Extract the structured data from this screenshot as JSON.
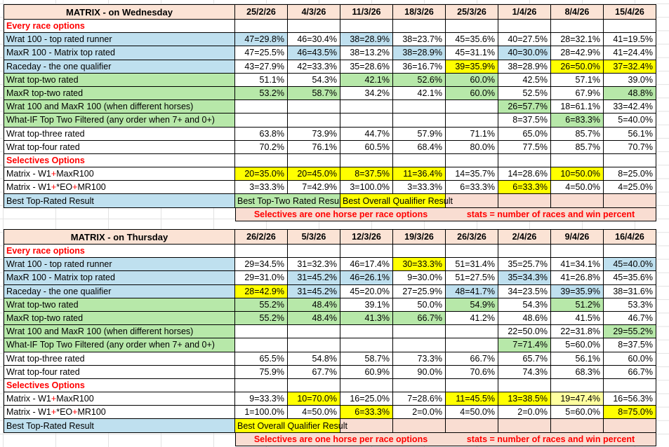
{
  "colors": {
    "peach": "#FBE3D5",
    "pink": "#F9DDD2",
    "blue": "#BFE0EF",
    "green": "#B7E8A9",
    "yellow": "#FFFF00",
    "pale": "#FFFF9F",
    "red": "#FF0000",
    "border": "#000000",
    "gridline": "#E2E2E2"
  },
  "banner": {
    "selectives": "Selectives are one horse per race options",
    "stats": "stats = number of races and win percent"
  },
  "tables": [
    {
      "title": "MATRIX - on Wednesday",
      "dates": [
        "25/2/26",
        "4/3/26",
        "11/3/26",
        "18/3/26",
        "25/3/26",
        "1/4/26",
        "8/4/26",
        "15/4/26"
      ],
      "rows": [
        {
          "type": "section",
          "label": "Every race options"
        },
        {
          "type": "data",
          "label": "Wrat 100 - top rated runner",
          "label_bg": "b",
          "cells": [
            {
              "v": "47=29.8%",
              "bg": "b"
            },
            {
              "v": "46=30.4%"
            },
            {
              "v": "38=28.9%",
              "bg": "b"
            },
            {
              "v": "38=23.7%"
            },
            {
              "v": "45=35.6%"
            },
            {
              "v": "40=27.5%"
            },
            {
              "v": "28=32.1%"
            },
            {
              "v": "41=19.5%"
            }
          ]
        },
        {
          "type": "data",
          "label": "MaxR 100 - Matrix top rated",
          "label_bg": "b",
          "cells": [
            {
              "v": "47=25.5%"
            },
            {
              "v": "46=43.5%",
              "bg": "b"
            },
            {
              "v": "38=13.2%"
            },
            {
              "v": "38=28.9%",
              "bg": "b"
            },
            {
              "v": "45=31.1%"
            },
            {
              "v": "40=30.0%",
              "bg": "b"
            },
            {
              "v": "28=42.9%"
            },
            {
              "v": "41=24.4%"
            }
          ]
        },
        {
          "type": "data",
          "label": "Raceday - the one qualifier",
          "label_bg": "b",
          "cells": [
            {
              "v": "43=27.9%"
            },
            {
              "v": "42=33.3%"
            },
            {
              "v": "35=28.6%"
            },
            {
              "v": "36=16.7%"
            },
            {
              "v": "39=35.9%",
              "bg": "y"
            },
            {
              "v": "38=28.9%"
            },
            {
              "v": "26=50.0%",
              "bg": "y"
            },
            {
              "v": "37=32.4%",
              "bg": "y"
            }
          ]
        },
        {
          "type": "data",
          "label": "Wrat top-two rated",
          "label_bg": "g",
          "cells": [
            {
              "v": "51.1%"
            },
            {
              "v": "54.3%"
            },
            {
              "v": "42.1%",
              "bg": "g"
            },
            {
              "v": "52.6%",
              "bg": "g"
            },
            {
              "v": "60.0%",
              "bg": "g"
            },
            {
              "v": "42.5%"
            },
            {
              "v": "57.1%"
            },
            {
              "v": "39.0%"
            }
          ]
        },
        {
          "type": "data",
          "label": "MaxR top-two rated",
          "label_bg": "g",
          "cells": [
            {
              "v": "53.2%",
              "bg": "g"
            },
            {
              "v": "58.7%",
              "bg": "g"
            },
            {
              "v": "34.2%"
            },
            {
              "v": "42.1%"
            },
            {
              "v": "60.0%",
              "bg": "g"
            },
            {
              "v": "52.5%"
            },
            {
              "v": "67.9%"
            },
            {
              "v": "48.8%",
              "bg": "g"
            }
          ]
        },
        {
          "type": "data",
          "label": "Wrat 100 and MaxR 100 (when different horses)",
          "label_bg": "g",
          "cells": [
            {
              "v": ""
            },
            {
              "v": ""
            },
            {
              "v": ""
            },
            {
              "v": ""
            },
            {
              "v": ""
            },
            {
              "v": "26=57.7%",
              "bg": "g"
            },
            {
              "v": "18=61.1%"
            },
            {
              "v": "33=42.4%"
            }
          ]
        },
        {
          "type": "data",
          "label": "What-IF Top Two Filtered (any order when 7+ and 0+)",
          "label_bg": "g",
          "cells": [
            {
              "v": ""
            },
            {
              "v": ""
            },
            {
              "v": ""
            },
            {
              "v": ""
            },
            {
              "v": ""
            },
            {
              "v": "8=37.5%"
            },
            {
              "v": "6=83.3%",
              "bg": "g"
            },
            {
              "v": "5=40.0%"
            }
          ]
        },
        {
          "type": "data",
          "label": "Wrat top-three rated",
          "cells": [
            {
              "v": "63.8%"
            },
            {
              "v": "73.9%"
            },
            {
              "v": "44.7%"
            },
            {
              "v": "57.9%"
            },
            {
              "v": "71.1%"
            },
            {
              "v": "65.0%"
            },
            {
              "v": "85.7%"
            },
            {
              "v": "56.1%"
            }
          ]
        },
        {
          "type": "data",
          "label": "Wrat top-four rated",
          "cells": [
            {
              "v": "70.2%"
            },
            {
              "v": "76.1%"
            },
            {
              "v": "60.5%"
            },
            {
              "v": "68.4%"
            },
            {
              "v": "80.0%"
            },
            {
              "v": "77.5%"
            },
            {
              "v": "85.7%"
            },
            {
              "v": "70.7%"
            }
          ]
        },
        {
          "type": "section",
          "label": "Selectives Options"
        },
        {
          "type": "data",
          "label_parts": [
            [
              "Matrix - W1",
              "k"
            ],
            [
              "+",
              "r"
            ],
            [
              "MaxR100",
              "k"
            ]
          ],
          "cells": [
            {
              "v": "20=35.0%",
              "bg": "y"
            },
            {
              "v": "20=45.0%",
              "bg": "y"
            },
            {
              "v": "8=37.5%",
              "bg": "y"
            },
            {
              "v": "11=36.4%",
              "bg": "y"
            },
            {
              "v": "14=35.7%"
            },
            {
              "v": "14=28.6%"
            },
            {
              "v": "10=50.0%",
              "bg": "y"
            },
            {
              "v": "8=25.0%"
            }
          ]
        },
        {
          "type": "data",
          "label_parts": [
            [
              "Matrix - W1",
              "k"
            ],
            [
              "+",
              "r"
            ],
            [
              "*EO",
              "k"
            ],
            [
              "+",
              "r"
            ],
            [
              "MR100",
              "k"
            ]
          ],
          "cells": [
            {
              "v": "3=33.3%"
            },
            {
              "v": "7=42.9%"
            },
            {
              "v": "3=100.0%"
            },
            {
              "v": "3=33.3%"
            },
            {
              "v": "6=33.3%"
            },
            {
              "v": "6=33.3%",
              "bg": "y"
            },
            {
              "v": "4=50.0%"
            },
            {
              "v": "4=25.0%"
            }
          ]
        },
        {
          "type": "best",
          "label": "Best Top-Rated Result",
          "segments": [
            {
              "text": "Best Top-Two Rated Result",
              "bg": "g",
              "span": 2,
              "clip": true
            },
            {
              "text": "Best Overall Qualifier Result",
              "bg": "y",
              "span": 2,
              "overflow": true
            },
            {
              "bg": "pink"
            },
            {
              "bg": "pink"
            },
            {
              "bg": "pink"
            },
            {
              "bg": "pink"
            }
          ]
        },
        {
          "type": "banner"
        }
      ]
    },
    {
      "title": "MATRIX - on Thursday",
      "dates": [
        "26/2/26",
        "5/3/26",
        "12/3/26",
        "19/3/26",
        "26/3/26",
        "2/4/26",
        "9/4/26",
        "16/4/26"
      ],
      "rows": [
        {
          "type": "section",
          "label": "Every race options"
        },
        {
          "type": "data",
          "label": "Wrat 100 - top rated runner",
          "label_bg": "b",
          "cells": [
            {
              "v": "29=34.5%"
            },
            {
              "v": "31=32.3%"
            },
            {
              "v": "46=17.4%"
            },
            {
              "v": "30=33.3%",
              "bg": "y"
            },
            {
              "v": "51=31.4%"
            },
            {
              "v": "35=25.7%"
            },
            {
              "v": "41=34.1%"
            },
            {
              "v": "45=40.0%",
              "bg": "b"
            }
          ]
        },
        {
          "type": "data",
          "label": "MaxR 100 - Matrix top rated",
          "label_bg": "b",
          "cells": [
            {
              "v": "29=31.0%"
            },
            {
              "v": "31=45.2%",
              "bg": "b"
            },
            {
              "v": "46=26.1%",
              "bg": "b"
            },
            {
              "v": "9=30.0%"
            },
            {
              "v": "51=27.5%"
            },
            {
              "v": "35=34.3%",
              "bg": "b"
            },
            {
              "v": "41=26.8%"
            },
            {
              "v": "45=35.6%"
            }
          ]
        },
        {
          "type": "data",
          "label": "Raceday - the one qualifier",
          "label_bg": "b",
          "cells": [
            {
              "v": "28=42.9%",
              "bg": "y"
            },
            {
              "v": "31=45.2%",
              "bg": "b"
            },
            {
              "v": "45=20.0%"
            },
            {
              "v": "27=25.9%"
            },
            {
              "v": "48=41.7%",
              "bg": "b"
            },
            {
              "v": "34=23.5%"
            },
            {
              "v": "39=35.9%",
              "bg": "b"
            },
            {
              "v": "38=31.6%"
            }
          ]
        },
        {
          "type": "data",
          "label": "Wrat top-two rated",
          "label_bg": "g",
          "cells": [
            {
              "v": "55.2%",
              "bg": "g"
            },
            {
              "v": "48.4%",
              "bg": "g"
            },
            {
              "v": "39.1%"
            },
            {
              "v": "50.0%"
            },
            {
              "v": "54.9%",
              "bg": "g"
            },
            {
              "v": "54.3%"
            },
            {
              "v": "51.2%",
              "bg": "g"
            },
            {
              "v": "53.3%"
            }
          ]
        },
        {
          "type": "data",
          "label": "MaxR top-two rated",
          "label_bg": "g",
          "cells": [
            {
              "v": "55.2%",
              "bg": "g"
            },
            {
              "v": "48.4%",
              "bg": "g"
            },
            {
              "v": "41.3%",
              "bg": "g"
            },
            {
              "v": "66.7%",
              "bg": "g"
            },
            {
              "v": "41.2%"
            },
            {
              "v": "48.6%"
            },
            {
              "v": "41.5%"
            },
            {
              "v": "46.7%"
            }
          ]
        },
        {
          "type": "data",
          "label": "Wrat 100 and MaxR 100 (when different horses)",
          "label_bg": "g",
          "cells": [
            {
              "v": ""
            },
            {
              "v": ""
            },
            {
              "v": ""
            },
            {
              "v": ""
            },
            {
              "v": ""
            },
            {
              "v": "22=50.0%"
            },
            {
              "v": "22=31.8%"
            },
            {
              "v": "29=55.2%",
              "bg": "g"
            }
          ]
        },
        {
          "type": "data",
          "label": "What-IF Top Two Filtered (any order when 7+ and 0+)",
          "label_bg": "g",
          "cells": [
            {
              "v": ""
            },
            {
              "v": ""
            },
            {
              "v": ""
            },
            {
              "v": ""
            },
            {
              "v": ""
            },
            {
              "v": "7=71.4%",
              "bg": "g"
            },
            {
              "v": "5=60.0%"
            },
            {
              "v": "8=37.5%"
            }
          ]
        },
        {
          "type": "data",
          "label": "Wrat top-three rated",
          "cells": [
            {
              "v": "65.5%"
            },
            {
              "v": "54.8%"
            },
            {
              "v": "58.7%"
            },
            {
              "v": "73.3%"
            },
            {
              "v": "66.7%"
            },
            {
              "v": "65.7%"
            },
            {
              "v": "56.1%"
            },
            {
              "v": "60.0%"
            }
          ]
        },
        {
          "type": "data",
          "label": "Wrat top-four rated",
          "cells": [
            {
              "v": "75.9%"
            },
            {
              "v": "67.7%"
            },
            {
              "v": "60.9%"
            },
            {
              "v": "90.0%"
            },
            {
              "v": "70.6%"
            },
            {
              "v": "74.3%"
            },
            {
              "v": "68.3%"
            },
            {
              "v": "66.7%"
            }
          ]
        },
        {
          "type": "section",
          "label": "Selectives Options"
        },
        {
          "type": "data",
          "label_parts": [
            [
              "Matrix - W1",
              "k"
            ],
            [
              "+",
              "r"
            ],
            [
              "MaxR100",
              "k"
            ]
          ],
          "cells": [
            {
              "v": "9=33.3%"
            },
            {
              "v": "10=70.0%",
              "bg": "y"
            },
            {
              "v": "16=25.0%"
            },
            {
              "v": "7=28.6%"
            },
            {
              "v": "11=45.5%",
              "bg": "y"
            },
            {
              "v": "13=38.5%",
              "bg": "y"
            },
            {
              "v": "19=47.4%",
              "bg": "p"
            },
            {
              "v": "16=56.3%"
            }
          ]
        },
        {
          "type": "data",
          "label_parts": [
            [
              "Matrix - W1",
              "k"
            ],
            [
              "+",
              "r"
            ],
            [
              "*EO",
              "k"
            ],
            [
              "+",
              "r"
            ],
            [
              "MR100",
              "k"
            ]
          ],
          "cells": [
            {
              "v": "1=100.0%"
            },
            {
              "v": "4=50.0%"
            },
            {
              "v": "6=33.3%",
              "bg": "y"
            },
            {
              "v": "2=0.0%"
            },
            {
              "v": "4=50.0%"
            },
            {
              "v": "2=0.0%"
            },
            {
              "v": "5=60.0%"
            },
            {
              "v": "8=75.0%",
              "bg": "y"
            }
          ]
        },
        {
          "type": "best",
          "label": "Best Top-Rated Result",
          "segments": [
            {
              "text": "Best Overall Qualifier Result",
              "bg": "y",
              "span": 2,
              "overflow": true
            },
            {
              "bg": "pink"
            },
            {
              "bg": "pink"
            },
            {
              "bg": "pink"
            },
            {
              "bg": "pink"
            },
            {
              "bg": "pink"
            },
            {
              "bg": "pink"
            }
          ]
        },
        {
          "type": "banner"
        }
      ]
    }
  ]
}
